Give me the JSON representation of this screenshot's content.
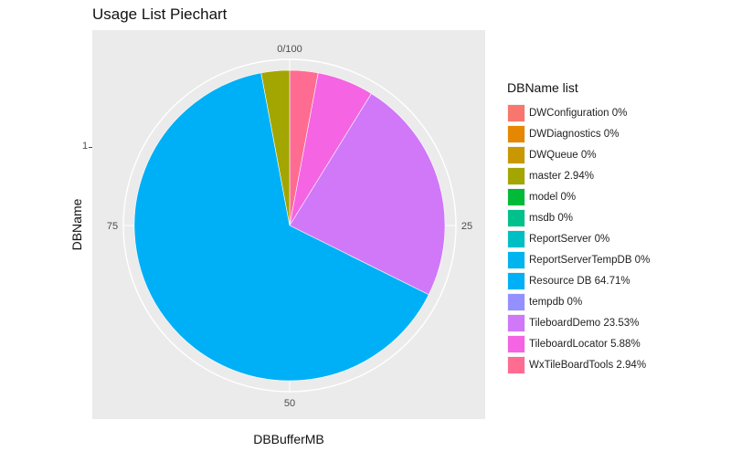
{
  "title": "Usage List Piechart",
  "chart_data": {
    "type": "pie",
    "title": "Usage List Piechart",
    "xlabel": "DBBufferMB",
    "ylabel": "DBName",
    "y_level_label": "1",
    "angle_ticks": [
      "0/100",
      "25",
      "50",
      "75"
    ],
    "legend_title": "DBName list",
    "legend_position": "right",
    "categories": [
      "DWConfiguration 0%",
      "DWDiagnostics 0%",
      "DWQueue 0%",
      "master 2.94%",
      "model 0%",
      "msdb 0%",
      "ReportServer 0%",
      "ReportServerTempDB 0%",
      "Resource DB 64.71%",
      "tempdb 0%",
      "TileboardDemo 23.53%",
      "TileboardLocator 5.88%",
      "WxTileBoardTools 2.94%"
    ],
    "values": [
      0,
      0,
      0,
      2.94,
      0,
      0,
      0,
      0,
      64.71,
      0,
      23.53,
      5.88,
      2.94
    ],
    "colors": [
      "#F8766D",
      "#E58700",
      "#C99800",
      "#A3A500",
      "#6BB100",
      "#00BA38",
      "#00BF7D",
      "#00C0AF",
      "#00BCD8",
      "#00B0F6",
      "#619CFF",
      "#B983FF",
      "#E76BF3",
      "#FD61D1",
      "#FF67A4"
    ],
    "slice_order": [
      "WxTileBoardTools 2.94%",
      "TileboardLocator 5.88%",
      "TileboardDemo 23.53%",
      "Resource DB 64.71%",
      "master 2.94%"
    ],
    "grid": true
  }
}
